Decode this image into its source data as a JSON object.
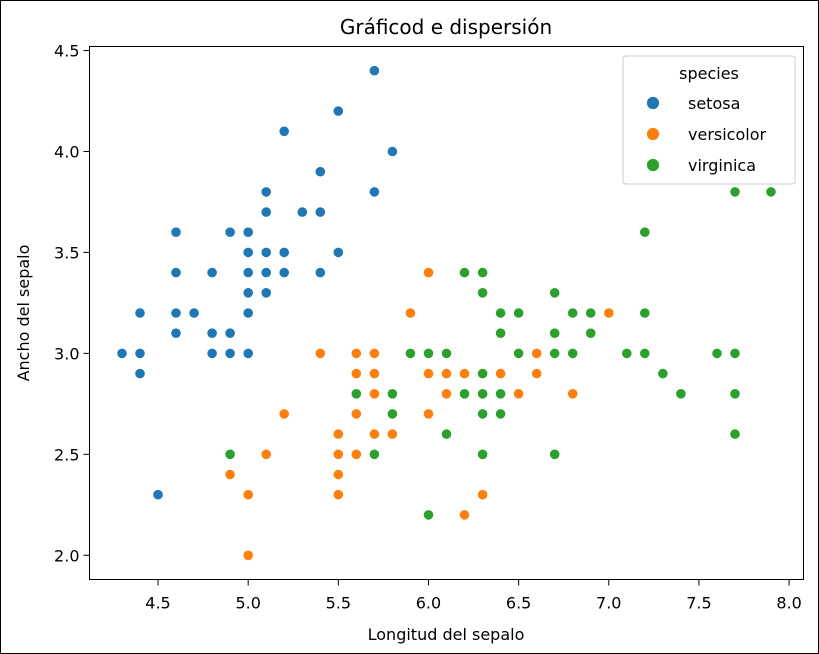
{
  "chart_data": {
    "type": "scatter",
    "title": "Gráficod e dispersión",
    "xlabel": "Longitud del sepalo",
    "ylabel": "Ancho del sepalo",
    "xlim": [
      4.12,
      8.08
    ],
    "ylim": [
      1.88,
      4.52
    ],
    "xticks": [
      "4.5",
      "5.0",
      "5.5",
      "6.0",
      "6.5",
      "7.0",
      "7.5",
      "8.0"
    ],
    "yticks": [
      "2.0",
      "2.5",
      "3.0",
      "3.5",
      "4.0",
      "4.5"
    ],
    "grid": false,
    "legend": {
      "title": "species",
      "placement": "top-right"
    },
    "series": [
      {
        "name": "setosa",
        "color": "#1f77b4",
        "x": [
          5.1,
          4.9,
          4.7,
          4.6,
          5.0,
          5.4,
          4.6,
          5.0,
          4.4,
          4.9,
          5.4,
          4.8,
          4.8,
          4.3,
          5.8,
          5.7,
          5.4,
          5.1,
          5.7,
          5.1,
          5.4,
          5.1,
          4.6,
          5.1,
          4.8,
          5.0,
          5.0,
          5.2,
          5.2,
          4.7,
          4.8,
          5.4,
          5.2,
          5.5,
          4.9,
          5.0,
          5.5,
          4.9,
          4.4,
          5.1,
          5.0,
          4.5,
          4.4,
          5.0,
          5.1,
          4.8,
          5.1,
          4.6,
          5.3,
          5.0
        ],
        "y": [
          3.5,
          3.0,
          3.2,
          3.1,
          3.6,
          3.9,
          3.4,
          3.4,
          2.9,
          3.1,
          3.7,
          3.4,
          3.0,
          3.0,
          4.0,
          4.4,
          3.9,
          3.5,
          3.8,
          3.8,
          3.4,
          3.7,
          3.6,
          3.3,
          3.4,
          3.0,
          3.4,
          3.5,
          3.4,
          3.2,
          3.1,
          3.4,
          4.1,
          4.2,
          3.1,
          3.2,
          3.5,
          3.6,
          3.0,
          3.4,
          3.5,
          2.3,
          3.2,
          3.5,
          3.8,
          3.0,
          3.8,
          3.2,
          3.7,
          3.3
        ]
      },
      {
        "name": "versicolor",
        "color": "#ff7f0e",
        "x": [
          7.0,
          6.4,
          6.9,
          5.5,
          6.5,
          5.7,
          6.3,
          4.9,
          6.6,
          5.2,
          5.0,
          5.9,
          6.0,
          6.1,
          5.6,
          6.7,
          5.6,
          5.8,
          6.2,
          5.6,
          5.9,
          6.1,
          6.3,
          6.1,
          6.4,
          6.6,
          6.8,
          6.7,
          6.0,
          5.7,
          5.5,
          5.5,
          5.8,
          6.0,
          5.4,
          6.0,
          6.7,
          6.3,
          5.6,
          5.5,
          5.5,
          6.1,
          5.8,
          5.0,
          5.6,
          5.7,
          5.7,
          6.2,
          5.1,
          5.7
        ],
        "y": [
          3.2,
          3.2,
          3.1,
          2.3,
          2.8,
          2.8,
          3.3,
          2.4,
          2.9,
          2.7,
          2.0,
          3.0,
          2.2,
          2.9,
          2.9,
          3.1,
          3.0,
          2.7,
          2.2,
          2.5,
          3.2,
          2.8,
          2.5,
          2.8,
          2.9,
          3.0,
          2.8,
          3.0,
          2.9,
          2.6,
          2.4,
          2.4,
          2.7,
          2.7,
          3.0,
          3.4,
          3.1,
          2.3,
          3.0,
          2.5,
          2.6,
          3.0,
          2.6,
          2.3,
          2.7,
          3.0,
          2.9,
          2.9,
          2.5,
          2.8
        ]
      },
      {
        "name": "virginica",
        "color": "#2ca02c",
        "x": [
          6.3,
          5.8,
          7.1,
          6.3,
          6.5,
          7.6,
          4.9,
          7.3,
          6.7,
          7.2,
          6.5,
          6.4,
          6.8,
          5.7,
          5.8,
          6.4,
          6.5,
          7.7,
          7.7,
          6.0,
          6.9,
          5.6,
          7.7,
          6.3,
          6.7,
          7.2,
          6.2,
          6.1,
          6.4,
          7.2,
          7.4,
          7.9,
          6.4,
          6.3,
          6.1,
          7.7,
          6.3,
          6.4,
          6.0,
          6.9,
          6.7,
          6.9,
          5.8,
          6.8,
          6.7,
          6.7,
          6.3,
          6.5,
          6.2,
          5.9
        ],
        "y": [
          3.3,
          2.7,
          3.0,
          2.9,
          3.0,
          3.0,
          2.5,
          2.9,
          2.5,
          3.6,
          3.2,
          2.7,
          3.0,
          2.5,
          2.8,
          3.2,
          3.0,
          3.8,
          2.6,
          2.2,
          3.2,
          2.8,
          2.8,
          2.7,
          3.3,
          3.2,
          2.8,
          3.0,
          2.8,
          3.0,
          2.8,
          3.8,
          2.8,
          2.8,
          2.6,
          3.0,
          3.4,
          3.1,
          3.0,
          3.1,
          3.1,
          3.1,
          2.7,
          3.2,
          3.3,
          3.0,
          2.5,
          3.0,
          3.4,
          3.0
        ]
      }
    ]
  }
}
